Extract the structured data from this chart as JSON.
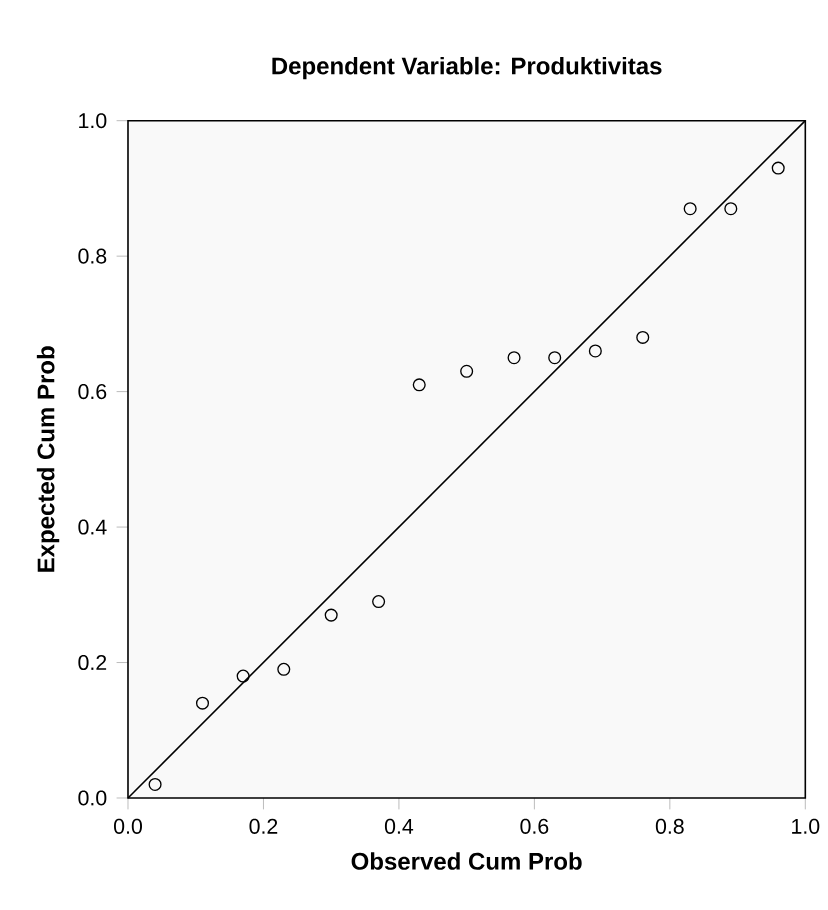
{
  "chart_data": {
    "type": "scatter",
    "title": "Dependent Variable: Produktivitas",
    "xlabel": "Observed Cum Prob",
    "ylabel": "Expected Cum Prob",
    "xlim": [
      0,
      1
    ],
    "ylim": [
      0,
      1
    ],
    "xticks": [
      {
        "value": 0,
        "label": "0.0"
      },
      {
        "value": 0.2,
        "label": "0.2"
      },
      {
        "value": 0.4,
        "label": "0.4"
      },
      {
        "value": 0.6,
        "label": "0.6"
      },
      {
        "value": 0.8,
        "label": "0.8"
      },
      {
        "value": 1,
        "label": "1.0"
      }
    ],
    "yticks": [
      {
        "value": 0,
        "label": "0.0"
      },
      {
        "value": 0.2,
        "label": "0.2"
      },
      {
        "value": 0.4,
        "label": "0.4"
      },
      {
        "value": 0.6,
        "label": "0.6"
      },
      {
        "value": 0.8,
        "label": "0.8"
      },
      {
        "value": 1,
        "label": "1.0"
      }
    ],
    "series": [
      {
        "marker": "circle",
        "color": "#000000",
        "x": [
          0.04,
          0.11,
          0.17,
          0.23,
          0.3,
          0.37,
          0.43,
          0.5,
          0.57,
          0.63,
          0.69,
          0.76,
          0.83,
          0.89,
          0.96
        ],
        "values": [
          0.02,
          0.14,
          0.18,
          0.19,
          0.27,
          0.29,
          0.61,
          0.63,
          0.65,
          0.65,
          0.66,
          0.68,
          0.87,
          0.87,
          0.93
        ]
      },
      {
        "type": "line",
        "color": "#000000",
        "x": [
          0,
          1
        ],
        "values": [
          0,
          1
        ]
      }
    ]
  }
}
